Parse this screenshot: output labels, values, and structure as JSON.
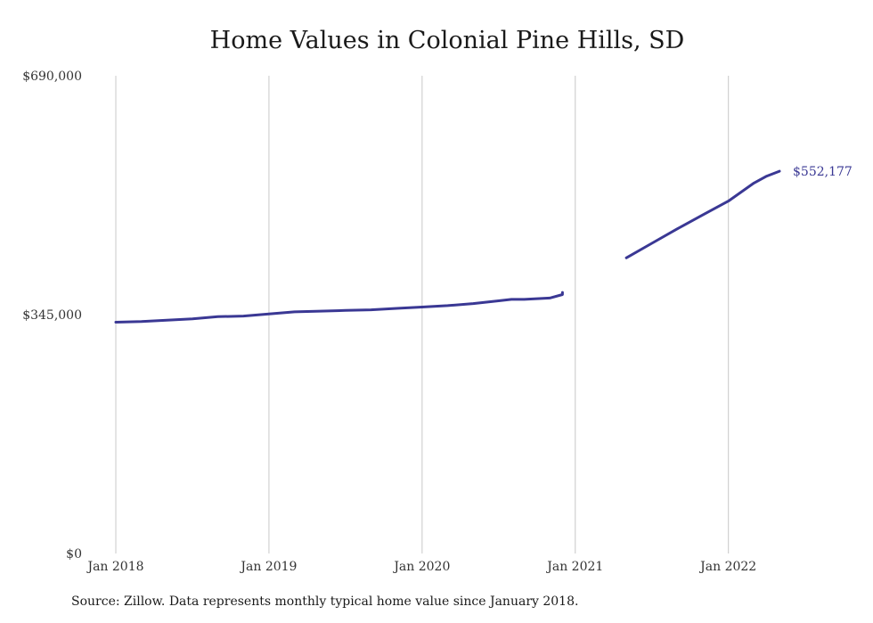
{
  "chart_data": {
    "type": "line",
    "title": "Home Values in Colonial Pine Hills, SD",
    "xlabel": "",
    "ylabel": "",
    "ylim": [
      0,
      690000
    ],
    "y_ticks": [
      {
        "value": 0,
        "label": "$0"
      },
      {
        "value": 345000,
        "label": "$345,000"
      },
      {
        "value": 690000,
        "label": "$690,000"
      }
    ],
    "x_ticks": [
      {
        "value": "2018-01",
        "label": "Jan 2018"
      },
      {
        "value": "2019-01",
        "label": "Jan 2019"
      },
      {
        "value": "2020-01",
        "label": "Jan 2020"
      },
      {
        "value": "2021-01",
        "label": "Jan 2021"
      },
      {
        "value": "2022-01",
        "label": "Jan 2022"
      }
    ],
    "xlim": [
      "2018-01",
      "2022-05"
    ],
    "grid": "vertical",
    "line_color": "#3a3894",
    "end_label": "$552,177",
    "series": [
      {
        "segments": [
          [
            {
              "x": "2018-01",
              "y": 334000
            },
            {
              "x": "2018-03",
              "y": 335000
            },
            {
              "x": "2018-05",
              "y": 337000
            },
            {
              "x": "2018-07",
              "y": 339000
            },
            {
              "x": "2018-09",
              "y": 342000
            },
            {
              "x": "2018-11",
              "y": 343000
            },
            {
              "x": "2019-01",
              "y": 346000
            },
            {
              "x": "2019-03",
              "y": 349000
            },
            {
              "x": "2019-05",
              "y": 350000
            },
            {
              "x": "2019-07",
              "y": 351000
            },
            {
              "x": "2019-09",
              "y": 352000
            },
            {
              "x": "2019-11",
              "y": 354000
            },
            {
              "x": "2020-01",
              "y": 356000
            },
            {
              "x": "2020-03",
              "y": 358000
            },
            {
              "x": "2020-05",
              "y": 361000
            },
            {
              "x": "2020-07",
              "y": 365000
            },
            {
              "x": "2020-08",
              "y": 367000
            },
            {
              "x": "2020-09",
              "y": 367000
            },
            {
              "x": "2020-10",
              "y": 368000
            },
            {
              "x": "2020-11",
              "y": 369000
            },
            {
              "x": "2020-12",
              "y": 374000
            },
            {
              "x": "2021-00",
              "y": 377000
            }
          ],
          [
            {
              "x": "2021-05",
              "y": 427000
            },
            {
              "x": "2021-07",
              "y": 448000
            },
            {
              "x": "2021-09",
              "y": 469000
            },
            {
              "x": "2021-11",
              "y": 489000
            },
            {
              "x": "2022-01",
              "y": 509000
            },
            {
              "x": "2022-02",
              "y": 522000
            },
            {
              "x": "2022-03",
              "y": 535000
            },
            {
              "x": "2022-04",
              "y": 545000
            },
            {
              "x": "2022-05",
              "y": 552177
            }
          ]
        ]
      }
    ]
  },
  "source": "Source: Zillow. Data represents monthly typical home value since January 2018."
}
